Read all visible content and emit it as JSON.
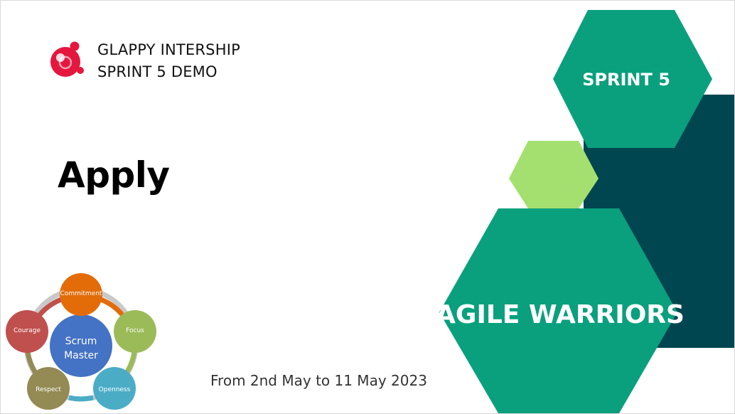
{
  "header": {
    "line1": "GLAPPY INTERSHIP",
    "line2": "SPRINT 5 DEMO"
  },
  "title": "Apply",
  "date_range": "From 2nd May to 11 May 2023",
  "hexagons": {
    "sprint_label": "SPRINT 5",
    "team_label": "AGILE WARRIORS"
  },
  "scrum_values": {
    "center": [
      "Scrum",
      "Master"
    ],
    "values": [
      "Commitment",
      "Focus",
      "Openness",
      "Respect",
      "Courage"
    ]
  },
  "colors": {
    "teal": "#0aa07d",
    "dark_teal": "#004650",
    "light_green": "#a4e06f",
    "logo_red": "#e5173f",
    "center_blue": "#4472c4",
    "commitment": "#e36c09",
    "focus": "#9bbb59",
    "openness": "#4bacc6",
    "respect": "#948a54",
    "courage": "#c0504d"
  }
}
